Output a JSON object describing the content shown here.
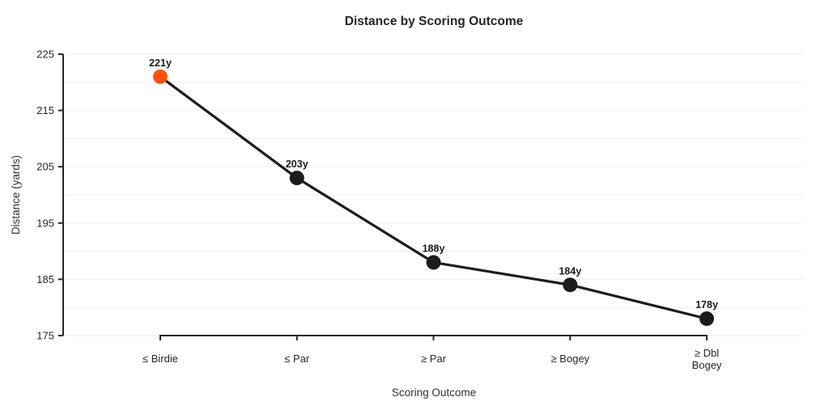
{
  "chart_data": {
    "type": "line",
    "title": "Distance by Scoring Outcome",
    "xlabel": "Scoring Outcome",
    "ylabel": "Distance (yards)",
    "categories": [
      "≤ Birdie",
      "≤ Par",
      "≥ Par",
      "≥ Bogey",
      "≥ Dbl\nBogey"
    ],
    "values": [
      221,
      203,
      188,
      184,
      178
    ],
    "point_labels": [
      "221y",
      "203y",
      "188y",
      "184y",
      "178y"
    ],
    "highlight_index": 0,
    "ylim": [
      175,
      225
    ],
    "yticks": [
      175,
      185,
      195,
      205,
      215,
      225
    ],
    "grid": true,
    "gridline_step": 5,
    "legend": "none",
    "colors": {
      "line": "#1c1c1c",
      "point": "#1c1c1c",
      "highlight_point": "#FF530D",
      "grid": "#ededed",
      "axis": "#262626",
      "text": "#262626"
    }
  }
}
